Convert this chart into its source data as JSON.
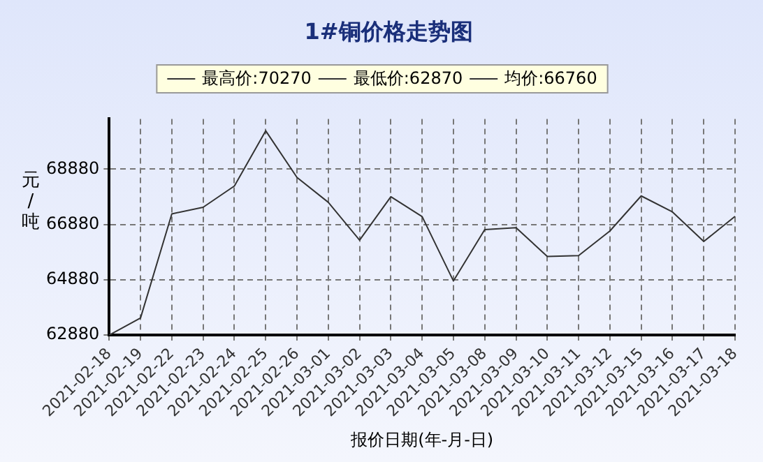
{
  "chart_data": {
    "type": "line",
    "title": "1#铜价格走势图",
    "xlabel": "报价日期(年-月-日)",
    "ylabel": "元/吨",
    "annotations": [
      "最高价:70270",
      "最低价:62870",
      "均价:66760"
    ],
    "categories": [
      "2021-02-18",
      "2021-02-19",
      "2021-02-22",
      "2021-02-23",
      "2021-02-24",
      "2021-02-25",
      "2021-02-26",
      "2021-03-01",
      "2021-03-02",
      "2021-03-03",
      "2021-03-04",
      "2021-03-05",
      "2021-03-08",
      "2021-03-09",
      "2021-03-10",
      "2021-03-11",
      "2021-03-12",
      "2021-03-15",
      "2021-03-16",
      "2021-03-17",
      "2021-03-18"
    ],
    "series": [
      {
        "color": "#333333",
        "values": [
          62870,
          63490,
          67260,
          67500,
          68270,
          70270,
          68580,
          67680,
          66310,
          67880,
          67160,
          64830,
          66690,
          66760,
          65720,
          65750,
          66640,
          67910,
          67330,
          66260,
          67170
        ]
      }
    ],
    "ylim": [
      62870,
      70700
    ],
    "yticks": [
      62880,
      64880,
      66880,
      68880
    ],
    "grid": true,
    "marker": "none",
    "line_style": "solid",
    "legend": false
  }
}
